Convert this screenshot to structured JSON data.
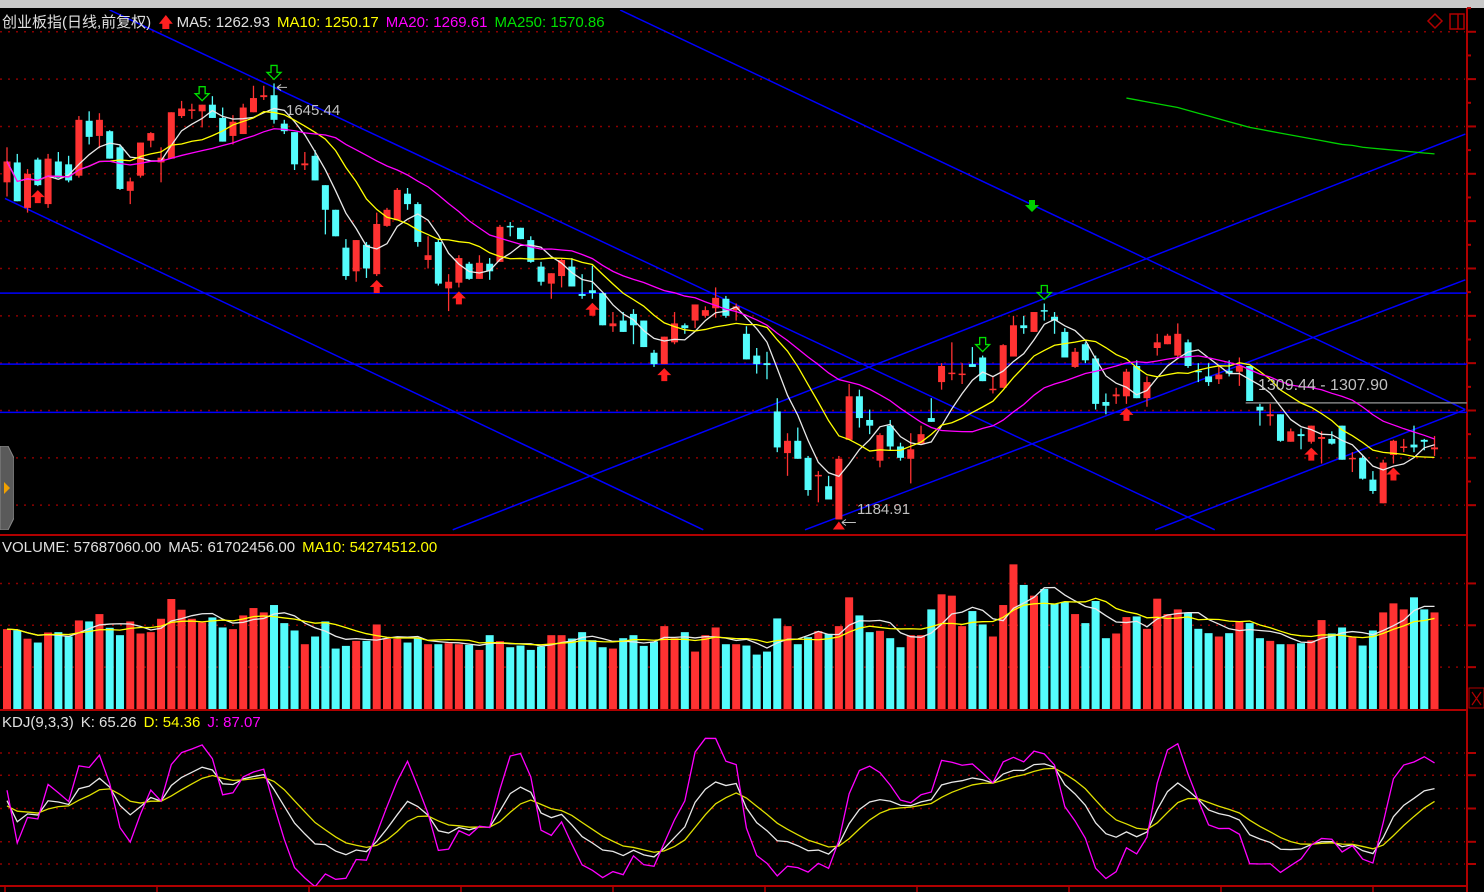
{
  "header": {
    "title": "创业板指(日线,前复权)",
    "ma5": "MA5: 1262.93",
    "ma10": "MA10: 1250.17",
    "ma20": "MA20: 1269.61",
    "ma250": "MA250: 1570.86"
  },
  "volume_header": {
    "volume": "VOLUME: 57687060.00",
    "ma5": "MA5: 61702456.00",
    "ma10": "MA10: 54274512.00"
  },
  "kdj_header": {
    "name": "KDJ(9,3,3)",
    "k": "K: 65.26",
    "d": "D: 54.36",
    "j": "J: 87.07"
  },
  "annotations": {
    "high_label": "1645.44",
    "low_label": "1184.91",
    "level_label": "1309.44 - 1307.90"
  },
  "colors": {
    "up": "#ff3232",
    "down": "#54fcfc",
    "ma5": "#e8e8e8",
    "ma10": "#ffff00",
    "ma20": "#ff00ff",
    "ma250": "#00d000",
    "trendline": "#0000ff",
    "grid": "#8b0000"
  },
  "icons": {
    "buy_signal": "red-up-arrow",
    "sell_signal": "green-down-arrow",
    "panel_toggle": "diamond-icon",
    "layout": "split-panel-icon",
    "close_pane": "x-icon",
    "collapse_tab": "orange-triangle-right"
  },
  "chart_data": [
    {
      "type": "candlestick",
      "ohlc_format": [
        "open",
        "high",
        "low",
        "close"
      ],
      "ylim": [
        1159,
        1723
      ],
      "grid_levels": [
        1200,
        1250,
        1300,
        1350,
        1400,
        1450,
        1500,
        1550,
        1600,
        1650,
        1700
      ],
      "grid": true,
      "moving_averages": [
        5,
        10,
        20
      ],
      "ohlc": [
        [
          1541,
          1578,
          1526,
          1563
        ],
        [
          1562,
          1571,
          1521,
          1521
        ],
        [
          1514,
          1555,
          1509,
          1550
        ],
        [
          1565,
          1567,
          1537,
          1538
        ],
        [
          1518,
          1571,
          1514,
          1566
        ],
        [
          1563,
          1573,
          1546,
          1546
        ],
        [
          1560,
          1569,
          1541,
          1543
        ],
        [
          1548,
          1611,
          1546,
          1607
        ],
        [
          1606,
          1616,
          1581,
          1589
        ],
        [
          1590,
          1614,
          1577,
          1607
        ],
        [
          1595,
          1596,
          1566,
          1566
        ],
        [
          1578,
          1581,
          1533,
          1534
        ],
        [
          1532,
          1546,
          1518,
          1542
        ],
        [
          1548,
          1583,
          1546,
          1583
        ],
        [
          1585,
          1594,
          1578,
          1593
        ],
        [
          1562,
          1578,
          1541,
          1567
        ],
        [
          1566,
          1615,
          1566,
          1615
        ],
        [
          1611,
          1627,
          1609,
          1619
        ],
        [
          1617,
          1624,
          1608,
          1618
        ],
        [
          1616,
          1623,
          1599,
          1623
        ],
        [
          1623,
          1632,
          1609,
          1609
        ],
        [
          1609,
          1620,
          1584,
          1584
        ],
        [
          1590,
          1612,
          1581,
          1605
        ],
        [
          1592,
          1624,
          1592,
          1620
        ],
        [
          1615,
          1643,
          1615,
          1630
        ],
        [
          1631,
          1643,
          1628,
          1633
        ],
        [
          1633,
          1645.44,
          1603,
          1607
        ],
        [
          1603,
          1607,
          1592,
          1595
        ],
        [
          1594,
          1594,
          1554,
          1560
        ],
        [
          1559,
          1573,
          1554,
          1561
        ],
        [
          1569,
          1575,
          1543,
          1543
        ],
        [
          1538,
          1538,
          1486,
          1512
        ],
        [
          1512,
          1512,
          1484,
          1484
        ],
        [
          1472,
          1481,
          1438,
          1442
        ],
        [
          1447,
          1480,
          1436,
          1480
        ],
        [
          1475,
          1478,
          1440,
          1450
        ],
        [
          1444,
          1509,
          1442,
          1497
        ],
        [
          1495,
          1514,
          1494,
          1512
        ],
        [
          1501,
          1535,
          1501,
          1533
        ],
        [
          1529,
          1535,
          1512,
          1518
        ],
        [
          1518,
          1520,
          1473,
          1478
        ],
        [
          1459,
          1484,
          1450,
          1464
        ],
        [
          1478,
          1480,
          1432,
          1434
        ],
        [
          1429,
          1444,
          1405,
          1436
        ],
        [
          1435,
          1464,
          1430,
          1461
        ],
        [
          1455,
          1457,
          1438,
          1439
        ],
        [
          1439,
          1464,
          1439,
          1456
        ],
        [
          1455,
          1461,
          1438,
          1447
        ],
        [
          1457,
          1496,
          1457,
          1494
        ],
        [
          1495,
          1499,
          1484,
          1494
        ],
        [
          1493,
          1493,
          1481,
          1481
        ],
        [
          1480,
          1484,
          1456,
          1457
        ],
        [
          1452,
          1457,
          1432,
          1436
        ],
        [
          1434,
          1445,
          1418,
          1445
        ],
        [
          1442,
          1461,
          1430,
          1459
        ],
        [
          1452,
          1461,
          1431,
          1431
        ],
        [
          1423,
          1444,
          1418,
          1421
        ],
        [
          1427,
          1453,
          1418,
          1424
        ],
        [
          1424,
          1424,
          1390,
          1390
        ],
        [
          1389,
          1404,
          1383,
          1392
        ],
        [
          1395,
          1404,
          1383,
          1383
        ],
        [
          1402,
          1407,
          1370,
          1390
        ],
        [
          1395,
          1395,
          1367,
          1367
        ],
        [
          1361,
          1364,
          1346,
          1349
        ],
        [
          1349,
          1378,
          1349,
          1378
        ],
        [
          1372,
          1404,
          1370,
          1392
        ],
        [
          1390,
          1392,
          1381,
          1387
        ],
        [
          1395,
          1412,
          1387,
          1412
        ],
        [
          1400,
          1410,
          1398,
          1406
        ],
        [
          1408,
          1430,
          1398,
          1419
        ],
        [
          1418,
          1421,
          1398,
          1400
        ],
        [
          1406,
          1413,
          1395,
          1410
        ],
        [
          1381,
          1389,
          1354,
          1354
        ],
        [
          1358,
          1366,
          1339,
          1349
        ],
        [
          1350,
          1362,
          1333,
          1348
        ],
        [
          1299,
          1313,
          1256,
          1261
        ],
        [
          1255,
          1276,
          1231,
          1268
        ],
        [
          1268,
          1282,
          1249,
          1249
        ],
        [
          1250,
          1252,
          1210,
          1216
        ],
        [
          1231,
          1236,
          1203,
          1232
        ],
        [
          1220,
          1231,
          1206,
          1206
        ],
        [
          1184.91,
          1252,
          1184.91,
          1249
        ],
        [
          1269,
          1328,
          1269,
          1315
        ],
        [
          1315,
          1322,
          1282,
          1292
        ],
        [
          1290,
          1301,
          1275,
          1284
        ],
        [
          1247,
          1276,
          1240,
          1274
        ],
        [
          1284,
          1290,
          1258,
          1262
        ],
        [
          1262,
          1266,
          1247,
          1250
        ],
        [
          1249,
          1276,
          1223,
          1259
        ],
        [
          1265,
          1284,
          1265,
          1275
        ],
        [
          1292,
          1313,
          1288,
          1288
        ],
        [
          1330,
          1350,
          1322,
          1347
        ],
        [
          1339,
          1372,
          1332,
          1340
        ],
        [
          1338,
          1350,
          1328,
          1339
        ],
        [
          1349,
          1367,
          1346,
          1346
        ],
        [
          1356,
          1358,
          1331,
          1331
        ],
        [
          1322,
          1336,
          1318,
          1323
        ],
        [
          1324,
          1370,
          1324,
          1369
        ],
        [
          1357,
          1400,
          1357,
          1390
        ],
        [
          1390,
          1400,
          1381,
          1387
        ],
        [
          1383,
          1404,
          1383,
          1404
        ],
        [
          1406,
          1413,
          1395,
          1405
        ],
        [
          1399,
          1404,
          1381,
          1395
        ],
        [
          1383,
          1387,
          1356,
          1356
        ],
        [
          1346,
          1366,
          1345,
          1362
        ],
        [
          1370,
          1372,
          1350,
          1353
        ],
        [
          1355,
          1358,
          1301,
          1307
        ],
        [
          1309,
          1318,
          1296,
          1305
        ],
        [
          1315,
          1324,
          1307,
          1317
        ],
        [
          1315,
          1344,
          1307,
          1341
        ],
        [
          1347,
          1353,
          1313,
          1313
        ],
        [
          1313,
          1336,
          1304,
          1330
        ],
        [
          1366,
          1381,
          1358,
          1372
        ],
        [
          1370,
          1381,
          1370,
          1379
        ],
        [
          1358,
          1392,
          1356,
          1381
        ],
        [
          1372,
          1375,
          1345,
          1347
        ],
        [
          1342,
          1350,
          1330,
          1341
        ],
        [
          1336,
          1350,
          1326,
          1330
        ],
        [
          1333,
          1347,
          1328,
          1338
        ],
        [
          1342,
          1353,
          1336,
          1339
        ],
        [
          1341,
          1356,
          1326,
          1347
        ],
        [
          1347,
          1347,
          1310,
          1310
        ],
        [
          1304,
          1307,
          1284,
          1300
        ],
        [
          1294,
          1307,
          1284,
          1296
        ],
        [
          1296,
          1296,
          1267,
          1268
        ],
        [
          1267,
          1281,
          1267,
          1278
        ],
        [
          1275,
          1281,
          1259,
          1273
        ],
        [
          1267,
          1284,
          1265,
          1284
        ],
        [
          1270,
          1278,
          1244,
          1272
        ],
        [
          1270,
          1278,
          1264,
          1265
        ],
        [
          1284,
          1284,
          1248,
          1248
        ],
        [
          1249,
          1256,
          1235,
          1250
        ],
        [
          1250,
          1252,
          1227,
          1228
        ],
        [
          1227,
          1236,
          1212,
          1215
        ],
        [
          1202,
          1248,
          1202,
          1245
        ],
        [
          1253,
          1269,
          1244,
          1268
        ],
        [
          1261,
          1270,
          1256,
          1262
        ],
        [
          1264,
          1284,
          1256,
          1261
        ],
        [
          1269,
          1270,
          1258,
          1267
        ],
        [
          1259,
          1273,
          1252,
          1261
        ]
      ],
      "ma250": {
        "start_index": 109,
        "values": [
          1630,
          1628,
          1626,
          1624,
          1622,
          1620,
          1617,
          1614,
          1611,
          1608,
          1605,
          1602,
          1599,
          1597,
          1595,
          1593,
          1591,
          1589,
          1587,
          1585,
          1583,
          1581,
          1580,
          1578,
          1577,
          1576,
          1575,
          1574,
          1573,
          1572,
          1571
        ]
      },
      "trendlines": [
        [
          [
            10.0,
            1723
          ],
          [
            117.6,
            1174
          ]
        ],
        [
          [
            59.7,
            1723
          ],
          [
            142,
            1301
          ]
        ],
        [
          [
            -0.2,
            1524
          ],
          [
            67.8,
            1174
          ]
        ],
        [
          [
            43.4,
            1174
          ],
          [
            142,
            1592
          ]
        ],
        [
          [
            77.7,
            1174
          ],
          [
            142,
            1438
          ]
        ],
        [
          [
            111.8,
            1174
          ],
          [
            142,
            1301
          ]
        ]
      ],
      "horizontal_lines": [
        1424,
        1349,
        1298
      ],
      "level_line": {
        "price": 1308,
        "start_index": 121
      },
      "high_point": {
        "index": 26,
        "price": 1645.44
      },
      "low_point": {
        "index": 81,
        "price": 1184.91
      },
      "buy_signals": [
        3,
        36,
        44,
        57,
        64,
        109,
        127,
        135
      ],
      "sell_signals_hollow": [
        19,
        26,
        95,
        101
      ],
      "sell_signal_solid": {
        "index": 100,
        "price": 1516
      }
    },
    {
      "type": "bar",
      "name": "VOLUME",
      "ylim": [
        0,
        89000000
      ],
      "grid_levels": [
        25000000,
        50000000,
        75000000
      ],
      "moving_averages": [
        5,
        10
      ],
      "values": [
        47700000,
        47000000,
        42000000,
        39700000,
        45700000,
        45900000,
        43300000,
        52900000,
        52300000,
        56700000,
        48500000,
        44100000,
        52300000,
        45100000,
        45900000,
        53900000,
        65700000,
        59300000,
        53900000,
        51700000,
        54700000,
        48700000,
        47700000,
        55900000,
        60300000,
        57700000,
        62100000,
        51300000,
        46900000,
        38700000,
        43300000,
        52300000,
        36100000,
        37700000,
        40700000,
        40700000,
        50500000,
        41900000,
        41900000,
        39700000,
        42300000,
        38700000,
        38700000,
        39300000,
        38700000,
        38300000,
        35300000,
        44100000,
        40500000,
        36900000,
        37900000,
        35300000,
        37300000,
        44100000,
        44100000,
        42100000,
        45900000,
        41100000,
        36900000,
        36100000,
        42300000,
        44100000,
        37700000,
        40300000,
        49500000,
        42300000,
        45900000,
        34300000,
        44100000,
        48700000,
        38700000,
        38700000,
        37900000,
        32500000,
        34300000,
        54100000,
        49500000,
        38700000,
        42900000,
        46500000,
        44900000,
        49500000,
        66700000,
        55900000,
        45900000,
        46700000,
        42300000,
        36900000,
        44100000,
        44100000,
        59500000,
        68500000,
        67700000,
        49500000,
        58500000,
        50500000,
        43300000,
        62100000,
        86400000,
        74100000,
        67700000,
        71700000,
        62900000,
        63900000,
        56700000,
        51300000,
        64500000,
        42300000,
        45100000,
        54900000,
        55300000,
        47900000,
        65900000,
        56700000,
        59500000,
        57700000,
        47900000,
        45300000,
        43300000,
        45300000,
        52300000,
        51300000,
        42300000,
        40700000,
        38700000,
        38700000,
        39300000,
        41000000,
        53100000,
        45100000,
        48700000,
        43300000,
        37900000,
        46900000,
        57700000,
        63100000,
        59500000,
        66700000,
        59500000,
        57687060
      ]
    },
    {
      "type": "line",
      "name": "KDJ(9,3,3)",
      "params": [
        9,
        3,
        3
      ],
      "series": [
        "K",
        "D",
        "J"
      ],
      "ylim": [
        -20,
        120
      ],
      "grid_levels": [
        0,
        20,
        50,
        80,
        100
      ]
    }
  ]
}
